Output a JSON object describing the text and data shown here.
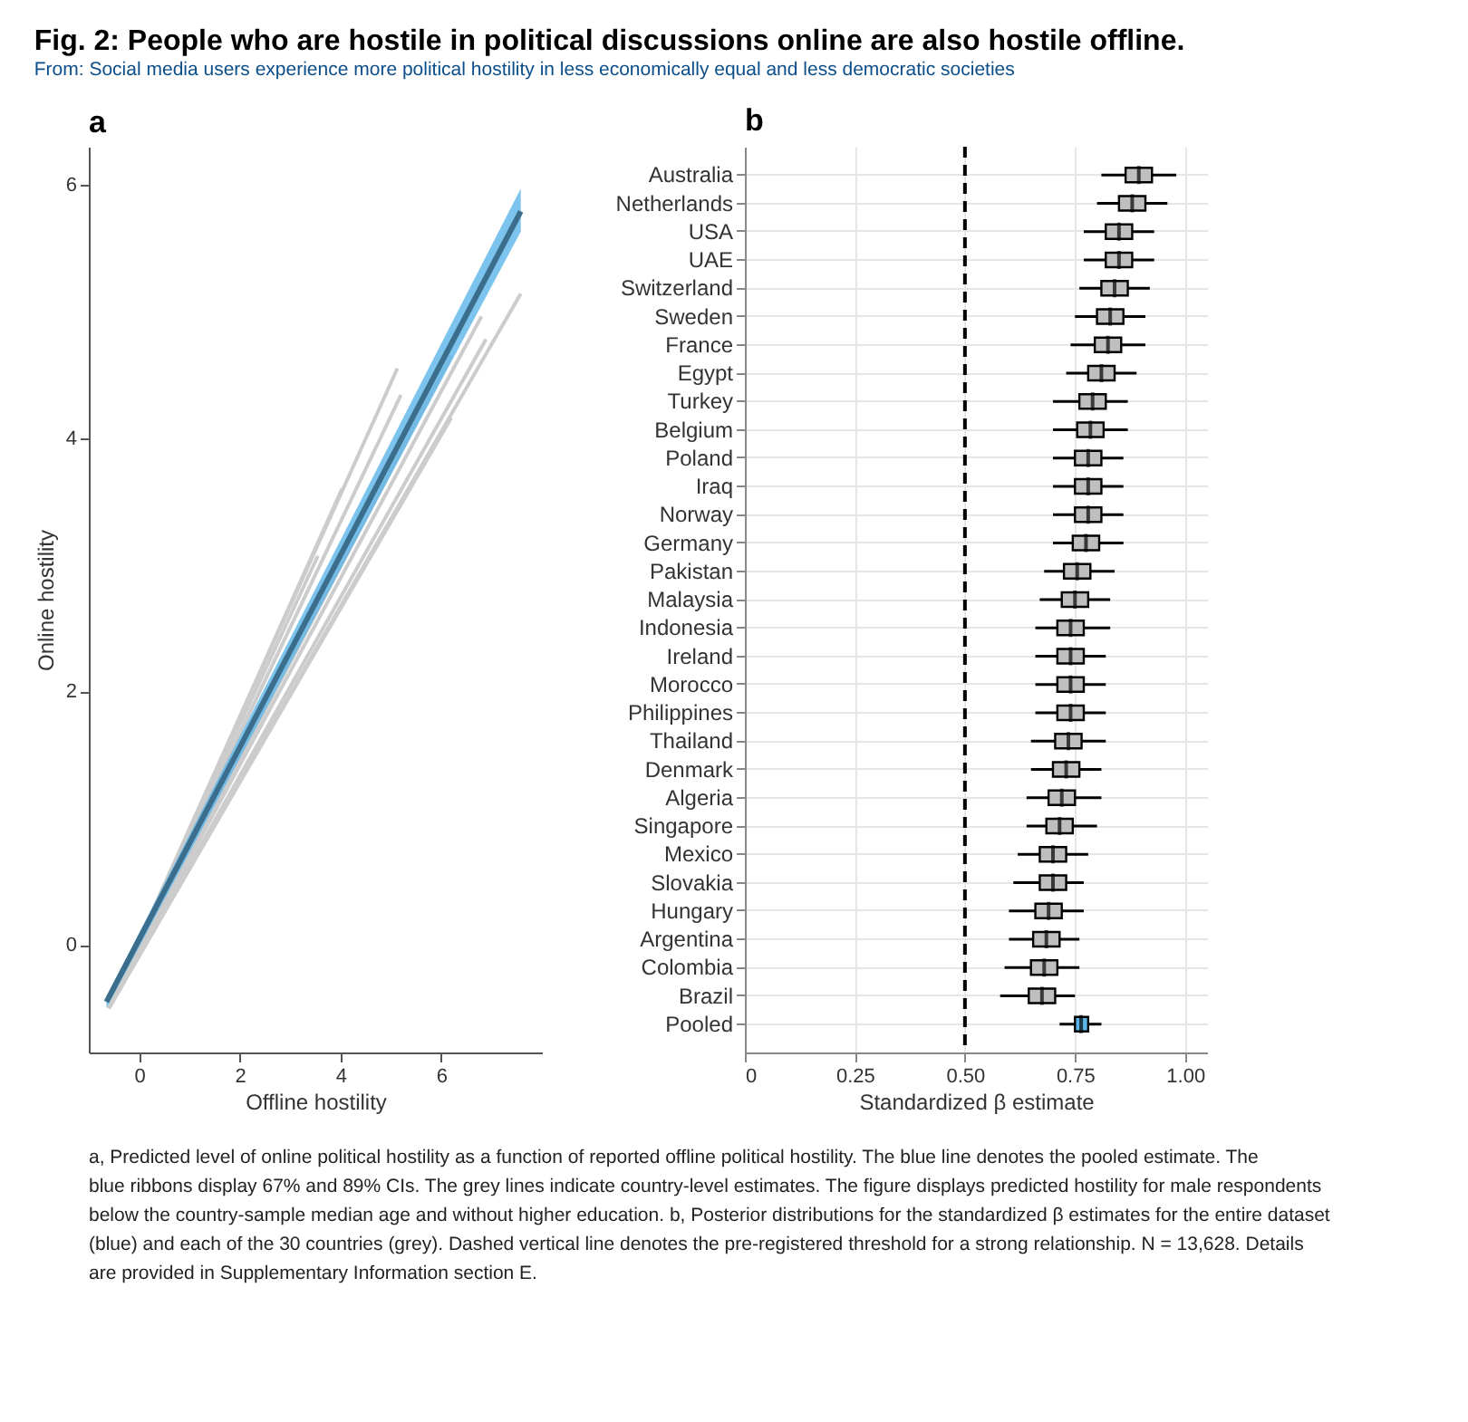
{
  "chart_data": [
    {
      "type": "line",
      "title": "Fig. 2: People who are hostile in political discussions online are also hostile offline.",
      "subtitle": "From: Social media users experience more political hostility in less economically equal and less democratic societies",
      "annotations": [
        "a",
        "a, Predicted level of online political hostility as a function of reported offline political hostility. The blue line denotes the pooled estimate. The blue ribbons display 67% and 89% CIs. The grey lines indicate country-level estimates. The figure displays predicted hostility for male respondents below the country-sample median age and without higher education. b, Posterior distributions for the standardized β estimates for the entire dataset (blue) and each of the 30 countries (grey). Dashed vertical line denotes the pre-registered threshold for a strong relationship. N = 13,628. Details are provided in Supplementary Information section E."
      ],
      "xlabel": "Offline hostility",
      "ylabel": "Online hostility",
      "xlim": [
        -1,
        8
      ],
      "ylim": [
        -0.85,
        6.3
      ],
      "xticks": [
        0,
        2,
        4,
        6
      ],
      "yticks": [
        0,
        2,
        4,
        6
      ],
      "grid": false,
      "marker": "none",
      "line_style": "solid",
      "series": [
        {
          "color": "#cccccc",
          "x": [
            -0.6,
            5.13
          ],
          "values": [
            -0.5,
            4.55
          ]
        },
        {
          "color": "#cccccc",
          "x": [
            -0.6,
            5.2
          ],
          "values": [
            -0.5,
            4.34
          ]
        },
        {
          "color": "#cccccc",
          "x": [
            -0.6,
            4.03
          ],
          "values": [
            -0.5,
            3.6
          ]
        },
        {
          "color": "#cccccc",
          "x": [
            -0.6,
            3.55
          ],
          "values": [
            -0.5,
            3.07
          ]
        },
        {
          "color": "#cccccc",
          "x": [
            -0.6,
            6.8
          ],
          "values": [
            -0.5,
            4.96
          ]
        },
        {
          "color": "#cccccc",
          "x": [
            -0.6,
            6.89
          ],
          "values": [
            -0.5,
            4.78
          ]
        },
        {
          "color": "#cccccc",
          "x": [
            -0.6,
            7.58
          ],
          "values": [
            -0.5,
            5.14
          ]
        },
        {
          "color": "#cccccc",
          "x": [
            -0.6,
            6.2
          ],
          "values": [
            -0.5,
            4.16
          ]
        },
        {
          "color": "#cccccc",
          "x": [
            -0.6,
            6.2
          ],
          "values": [
            -0.5,
            4.65
          ]
        },
        {
          "color": "#3b6e8c",
          "x": [
            -0.65,
            7.58
          ],
          "values": [
            -0.45,
            5.79
          ],
          "lower": [
            -0.5,
            5.63
          ],
          "upper": [
            -0.41,
            5.97
          ]
        }
      ]
    },
    {
      "type": "box",
      "orientation": "horizontal",
      "title": "b",
      "xlabel": "Standardized β estimate",
      "xlim": [
        0,
        1.05
      ],
      "xticks": [
        0,
        {
          "value": 0.25,
          "label": "0.25"
        },
        {
          "value": 0.5,
          "label": "0.50"
        },
        {
          "value": 0.75,
          "label": "0.75"
        },
        {
          "value": 1,
          "label": "1.00"
        }
      ],
      "grid": true,
      "ref_lines": [
        {
          "axis": "x",
          "value": 0.5,
          "line_style": "dashed",
          "color": "#000000"
        }
      ],
      "categories": [
        "Australia",
        "Netherlands",
        "USA",
        "UAE",
        "Switzerland",
        "Sweden",
        "France",
        "Egypt",
        "Turkey",
        "Belgium",
        "Poland",
        "Iraq",
        "Norway",
        "Germany",
        "Pakistan",
        "Malaysia",
        "Indonesia",
        "Ireland",
        "Morocco",
        "Philippines",
        "Thailand",
        "Denmark",
        "Algeria",
        "Singapore",
        "Mexico",
        "Slovakia",
        "Hungary",
        "Argentina",
        "Colombia",
        "Brazil",
        "Pooled"
      ],
      "colors": [
        "#bfbfbf",
        "#bfbfbf",
        "#bfbfbf",
        "#bfbfbf",
        "#bfbfbf",
        "#bfbfbf",
        "#bfbfbf",
        "#bfbfbf",
        "#bfbfbf",
        "#bfbfbf",
        "#bfbfbf",
        "#bfbfbf",
        "#bfbfbf",
        "#bfbfbf",
        "#bfbfbf",
        "#bfbfbf",
        "#bfbfbf",
        "#bfbfbf",
        "#bfbfbf",
        "#bfbfbf",
        "#bfbfbf",
        "#bfbfbf",
        "#bfbfbf",
        "#bfbfbf",
        "#bfbfbf",
        "#bfbfbf",
        "#bfbfbf",
        "#bfbfbf",
        "#bfbfbf",
        "#bfbfbf",
        "#5bb5e8"
      ],
      "boxes": [
        {
          "low": 0.81,
          "q1": 0.865,
          "median": 0.895,
          "q3": 0.925,
          "high": 0.98
        },
        {
          "low": 0.8,
          "q1": 0.85,
          "median": 0.88,
          "q3": 0.91,
          "high": 0.96
        },
        {
          "low": 0.77,
          "q1": 0.82,
          "median": 0.85,
          "q3": 0.88,
          "high": 0.93
        },
        {
          "low": 0.77,
          "q1": 0.82,
          "median": 0.85,
          "q3": 0.88,
          "high": 0.93
        },
        {
          "low": 0.76,
          "q1": 0.81,
          "median": 0.84,
          "q3": 0.87,
          "high": 0.92
        },
        {
          "low": 0.75,
          "q1": 0.8,
          "median": 0.83,
          "q3": 0.86,
          "high": 0.91
        },
        {
          "low": 0.74,
          "q1": 0.795,
          "median": 0.825,
          "q3": 0.855,
          "high": 0.91
        },
        {
          "low": 0.73,
          "q1": 0.78,
          "median": 0.81,
          "q3": 0.84,
          "high": 0.89
        },
        {
          "low": 0.7,
          "q1": 0.76,
          "median": 0.79,
          "q3": 0.82,
          "high": 0.87
        },
        {
          "low": 0.7,
          "q1": 0.755,
          "median": 0.785,
          "q3": 0.815,
          "high": 0.87
        },
        {
          "low": 0.7,
          "q1": 0.75,
          "median": 0.78,
          "q3": 0.81,
          "high": 0.86
        },
        {
          "low": 0.7,
          "q1": 0.75,
          "median": 0.78,
          "q3": 0.81,
          "high": 0.86
        },
        {
          "low": 0.7,
          "q1": 0.75,
          "median": 0.78,
          "q3": 0.81,
          "high": 0.86
        },
        {
          "low": 0.7,
          "q1": 0.745,
          "median": 0.775,
          "q3": 0.805,
          "high": 0.86
        },
        {
          "low": 0.68,
          "q1": 0.725,
          "median": 0.755,
          "q3": 0.785,
          "high": 0.84
        },
        {
          "low": 0.67,
          "q1": 0.72,
          "median": 0.75,
          "q3": 0.78,
          "high": 0.83
        },
        {
          "low": 0.66,
          "q1": 0.71,
          "median": 0.74,
          "q3": 0.77,
          "high": 0.83
        },
        {
          "low": 0.66,
          "q1": 0.71,
          "median": 0.74,
          "q3": 0.77,
          "high": 0.82
        },
        {
          "low": 0.66,
          "q1": 0.71,
          "median": 0.74,
          "q3": 0.77,
          "high": 0.82
        },
        {
          "low": 0.66,
          "q1": 0.71,
          "median": 0.74,
          "q3": 0.77,
          "high": 0.82
        },
        {
          "low": 0.65,
          "q1": 0.705,
          "median": 0.735,
          "q3": 0.765,
          "high": 0.82
        },
        {
          "low": 0.65,
          "q1": 0.7,
          "median": 0.73,
          "q3": 0.76,
          "high": 0.81
        },
        {
          "low": 0.64,
          "q1": 0.69,
          "median": 0.72,
          "q3": 0.75,
          "high": 0.81
        },
        {
          "low": 0.64,
          "q1": 0.685,
          "median": 0.715,
          "q3": 0.745,
          "high": 0.8
        },
        {
          "low": 0.62,
          "q1": 0.67,
          "median": 0.7,
          "q3": 0.73,
          "high": 0.78
        },
        {
          "low": 0.61,
          "q1": 0.67,
          "median": 0.7,
          "q3": 0.73,
          "high": 0.77
        },
        {
          "low": 0.6,
          "q1": 0.66,
          "median": 0.69,
          "q3": 0.72,
          "high": 0.77
        },
        {
          "low": 0.6,
          "q1": 0.655,
          "median": 0.685,
          "q3": 0.715,
          "high": 0.76
        },
        {
          "low": 0.59,
          "q1": 0.65,
          "median": 0.68,
          "q3": 0.71,
          "high": 0.76
        },
        {
          "low": 0.58,
          "q1": 0.645,
          "median": 0.675,
          "q3": 0.705,
          "high": 0.75
        },
        {
          "low": 0.715,
          "q1": 0.75,
          "median": 0.764,
          "q3": 0.78,
          "high": 0.81
        }
      ]
    }
  ]
}
